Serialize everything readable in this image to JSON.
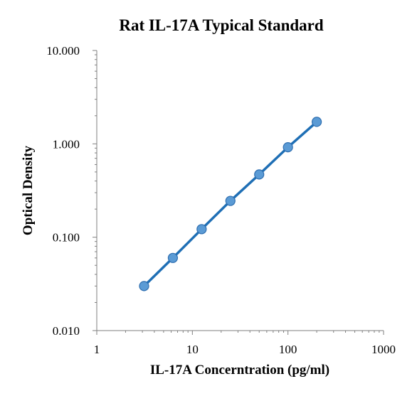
{
  "chart_data": {
    "type": "scatter",
    "title": "Rat IL-17A Typical Standard",
    "xlabel": "IL-17A Concerntration (pg/ml)",
    "ylabel": "Optical Density",
    "x_scale": "log",
    "y_scale": "log",
    "xlim": [
      1,
      1000
    ],
    "ylim": [
      0.01,
      10
    ],
    "x_ticks": [
      1,
      10,
      100,
      1000
    ],
    "x_tick_labels": [
      "1",
      "10",
      "100",
      "1000"
    ],
    "y_ticks": [
      0.01,
      0.1,
      1,
      10
    ],
    "y_tick_labels": [
      "0.010",
      "0.100",
      "1.000",
      "10.000"
    ],
    "grid": false,
    "legend": "none",
    "series": [
      {
        "x": [
          3.125,
          6.25,
          12.5,
          25,
          50,
          100,
          200
        ],
        "y": [
          0.03,
          0.06,
          0.122,
          0.245,
          0.47,
          0.92,
          1.72
        ],
        "marker_color": "#5b9bd5",
        "marker_edge_color": "#2e6eb0",
        "line_color": "#1f6fb5"
      }
    ]
  }
}
